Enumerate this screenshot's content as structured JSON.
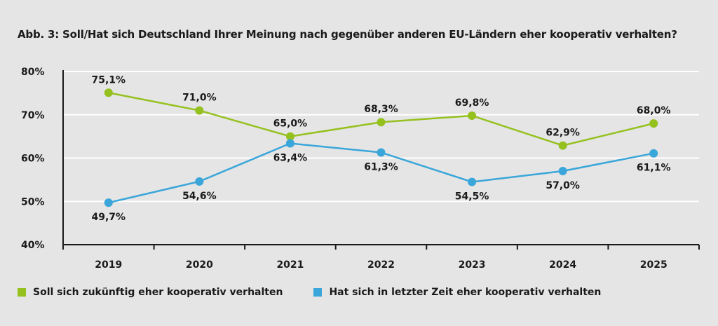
{
  "chart_data": {
    "type": "line",
    "title": "Abb. 3: Soll/Hat sich Deutschland Ihrer Meinung nach gegenüber anderen EU-Ländern eher kooperativ verhalten?",
    "categories": [
      "2019",
      "2020",
      "2021",
      "2022",
      "2023",
      "2024",
      "2025"
    ],
    "ylim": [
      40,
      80
    ],
    "y_ticks": [
      40,
      50,
      60,
      70,
      80
    ],
    "y_tick_labels": [
      "40%",
      "50%",
      "60%",
      "70%",
      "80%"
    ],
    "grid": true,
    "legend_position": "bottom-left",
    "series": [
      {
        "name": "Soll sich zukünftig eher kooperativ verhalten",
        "color": "#95c11f",
        "values": [
          75.1,
          71.0,
          65.0,
          68.3,
          69.8,
          62.9,
          68.0
        ],
        "labels": [
          "75,1%",
          "71,0%",
          "65,0%",
          "68,3%",
          "69,8%",
          "62,9%",
          "68,0%"
        ],
        "label_side": [
          "above",
          "above",
          "above",
          "above",
          "above",
          "above",
          "above"
        ]
      },
      {
        "name": "Hat sich in letzter Zeit eher kooperativ verhalten",
        "color": "#3aa6d9",
        "values": [
          49.7,
          54.6,
          63.4,
          61.3,
          54.5,
          57.0,
          61.1
        ],
        "labels": [
          "49,7%",
          "54,6%",
          "63,4%",
          "61,3%",
          "54,5%",
          "57,0%",
          "61,1%"
        ],
        "label_side": [
          "below",
          "below",
          "below",
          "below",
          "below",
          "below",
          "below"
        ]
      }
    ]
  }
}
